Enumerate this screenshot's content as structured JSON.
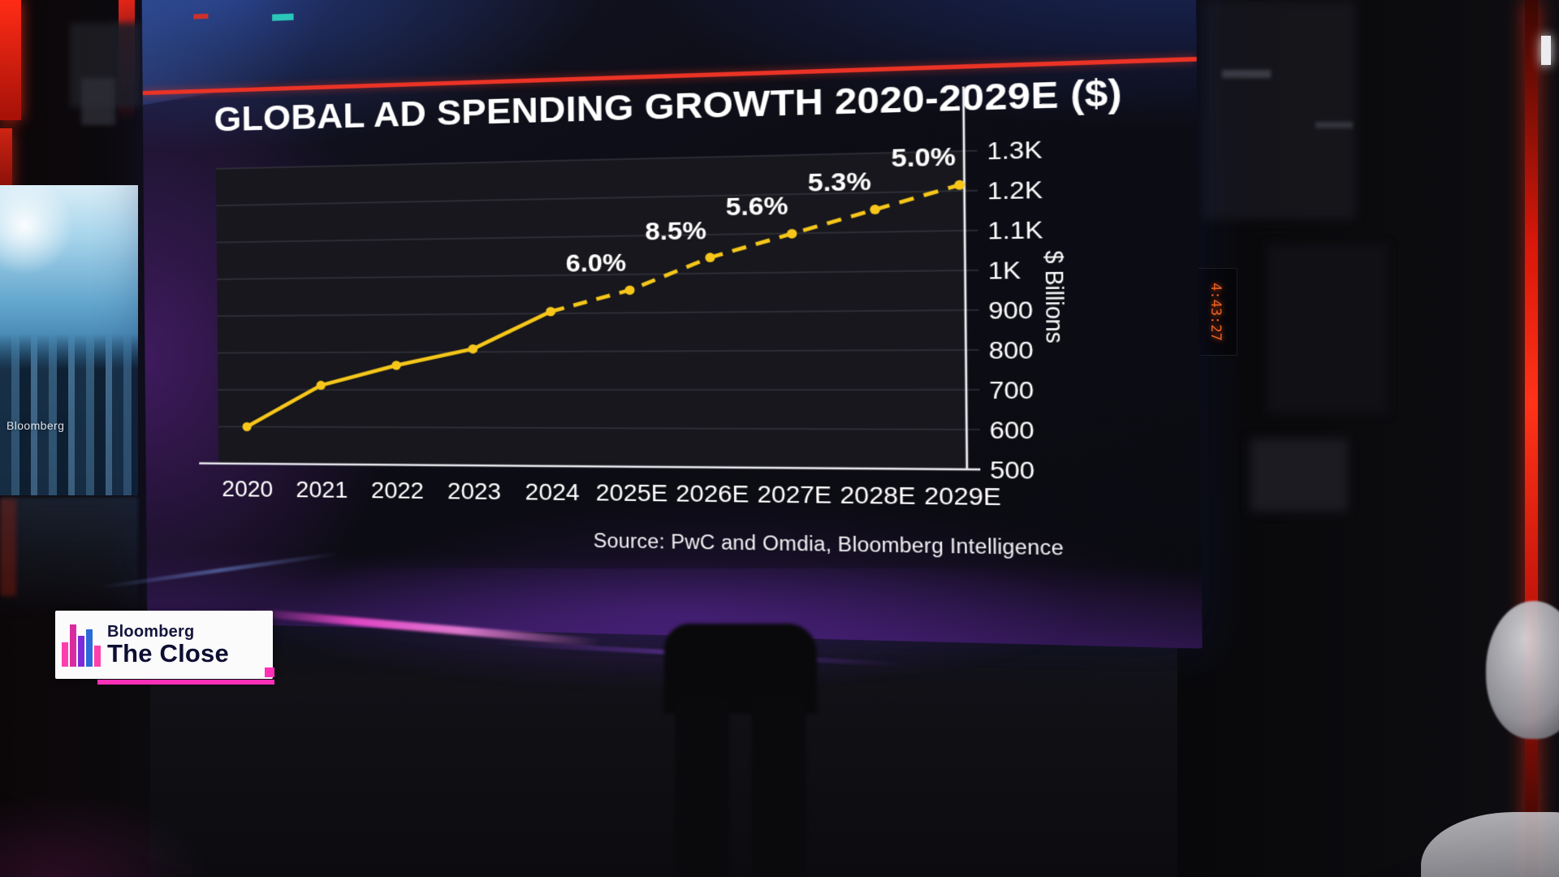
{
  "broadcast": {
    "logo": {
      "brand": "Bloomberg",
      "show": "The Close"
    },
    "clock": "4:43:27"
  },
  "studio": {
    "left_screen_label": "Bloomberg"
  },
  "chart_data": {
    "type": "line",
    "title": "GLOBAL AD SPENDING GROWTH 2020-2029E ($)",
    "ylabel": "$ Billions",
    "source": "Source: PwC and Omdia, Bloomberg Intelligence",
    "categories": [
      "2020",
      "2021",
      "2022",
      "2023",
      "2024",
      "2025E",
      "2026E",
      "2027E",
      "2028E",
      "2029E"
    ],
    "values": [
      600,
      712,
      765,
      808,
      905,
      959,
      1041,
      1099,
      1157,
      1215
    ],
    "point_labels": [
      "",
      "",
      "",
      "",
      "",
      "6.0%",
      "8.5%",
      "5.6%",
      "5.3%",
      "5.0%"
    ],
    "solid_until_index": 4,
    "ylim": [
      500,
      1300
    ],
    "yticks": [
      500,
      600,
      700,
      800,
      900,
      1000,
      1100,
      1200,
      1300
    ],
    "ytick_labels": [
      "500",
      "600",
      "700",
      "800",
      "900",
      "1K",
      "1.1K",
      "1.2K",
      "1.3K"
    ],
    "line_color": "#f6c71a",
    "grid": true,
    "legend": "none",
    "line_style": {
      "historical": "solid",
      "forecast": "dashed"
    }
  }
}
